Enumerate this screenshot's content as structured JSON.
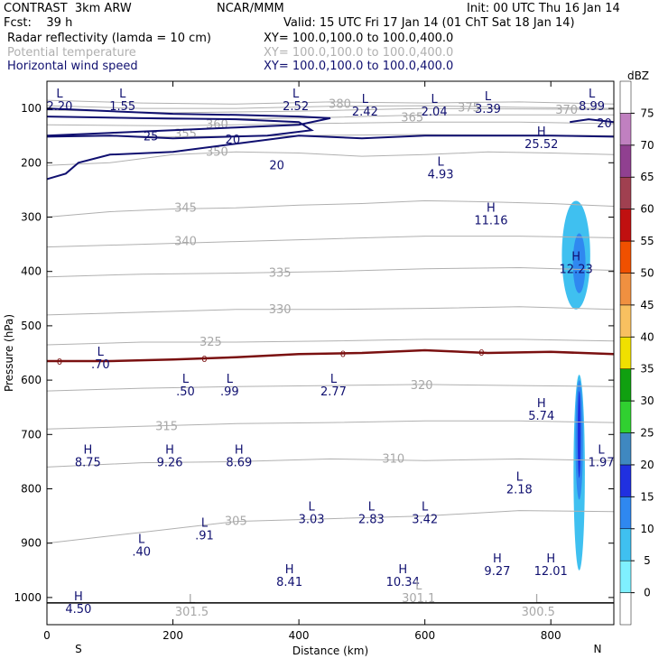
{
  "header": {
    "line1_left": "CONTRAST  3km ARW",
    "line1_center": "NCAR/MMM",
    "line1_right": "Init: 00 UTC Thu 16 Jan 14",
    "line2_left": "Fcst:    39 h",
    "line2_right": "Valid: 15 UTC Fri 17 Jan 14 (01 ChT Sat 18 Jan 14)",
    "field1_name": "Radar reflectivity (lamda = 10 cm)",
    "field1_xy": "XY= 100.0,100.0 to 100.0,400.0",
    "field2_name": "Potential temperature",
    "field2_xy": "XY= 100.0,100.0 to 100.0,400.0",
    "field3_name": "Horizontal wind speed",
    "field3_xy": "XY= 100.0,100.0 to 100.0,400.0"
  },
  "colors": {
    "wind": "#101070",
    "theta": "#b0b0b0",
    "freezing": "#7a1010",
    "frame": "#000000"
  },
  "chart_data": {
    "type": "contour-cross-section",
    "xlabel": "Distance (km)",
    "ylabel": "Pressure (hPa)",
    "xlim": [
      0,
      900
    ],
    "ylim": [
      1050,
      50
    ],
    "xticks": [
      0,
      200,
      400,
      600,
      800
    ],
    "yticks": [
      100,
      200,
      300,
      400,
      500,
      600,
      700,
      800,
      900,
      1000
    ],
    "x_end_labels": {
      "left": "S",
      "right": "N"
    },
    "colorbar": {
      "unit": "dBZ",
      "levels": [
        0,
        5,
        10,
        15,
        20,
        25,
        30,
        35,
        40,
        45,
        50,
        55,
        60,
        65,
        70,
        75
      ],
      "colors": [
        "#ffffff",
        "#7ff0ff",
        "#3fc0f0",
        "#2f88f0",
        "#2030e0",
        "#3f88c0",
        "#30d030",
        "#10a010",
        "#f0e000",
        "#f8c060",
        "#f09040",
        "#f05000",
        "#c01010",
        "#a04050",
        "#904090",
        "#c080c0",
        "#ffffff"
      ]
    },
    "theta_contours": [
      {
        "label": "380",
        "points": [
          [
            0,
            85
          ],
          [
            150,
            90
          ],
          [
            300,
            92
          ],
          [
            450,
            88
          ],
          [
            600,
            90
          ],
          [
            750,
            88
          ],
          [
            900,
            92
          ]
        ],
        "label_pos": [
          465,
          92
        ]
      },
      {
        "label": "375",
        "points": [
          [
            0,
            95
          ],
          [
            150,
            100
          ],
          [
            300,
            100
          ],
          [
            450,
            96
          ],
          [
            600,
            95
          ],
          [
            750,
            98
          ],
          [
            900,
            100
          ]
        ],
        "label_pos": [
          670,
          99
        ]
      },
      {
        "label": "370",
        "points": [
          [
            0,
            103
          ],
          [
            200,
            108
          ],
          [
            400,
            105
          ],
          [
            600,
            100
          ],
          [
            900,
            102
          ]
        ],
        "label_pos": [
          825,
          103
        ]
      },
      {
        "label": "365",
        "points": [
          [
            0,
            115
          ],
          [
            200,
            120
          ],
          [
            400,
            118
          ],
          [
            600,
            112
          ],
          [
            900,
            112
          ]
        ],
        "label_pos": [
          580,
          117
        ]
      },
      {
        "label": "360",
        "points": [
          [
            0,
            130
          ],
          [
            200,
            132
          ],
          [
            400,
            128
          ],
          [
            600,
            125
          ],
          [
            750,
            125
          ],
          [
            900,
            128
          ]
        ],
        "label_pos": [
          270,
          130
        ]
      },
      {
        "label": "355",
        "points": [
          [
            0,
            150
          ],
          [
            200,
            152
          ],
          [
            400,
            150
          ],
          [
            600,
            148
          ],
          [
            900,
            150
          ]
        ],
        "label_pos": [
          220,
          147
        ]
      },
      {
        "label": "350",
        "points": [
          [
            0,
            205
          ],
          [
            100,
            200
          ],
          [
            200,
            185
          ],
          [
            300,
            180
          ],
          [
            400,
            182
          ],
          [
            500,
            188
          ],
          [
            600,
            185
          ],
          [
            700,
            180
          ],
          [
            800,
            182
          ],
          [
            900,
            185
          ]
        ],
        "label_pos": [
          270,
          180
        ]
      },
      {
        "label": "345",
        "points": [
          [
            0,
            300
          ],
          [
            100,
            290
          ],
          [
            200,
            285
          ],
          [
            300,
            283
          ],
          [
            400,
            278
          ],
          [
            500,
            275
          ],
          [
            600,
            270
          ],
          [
            700,
            272
          ],
          [
            800,
            275
          ],
          [
            900,
            280
          ]
        ],
        "label_pos": [
          220,
          283
        ]
      },
      {
        "label": "340",
        "points": [
          [
            0,
            355
          ],
          [
            150,
            350
          ],
          [
            300,
            345
          ],
          [
            450,
            340
          ],
          [
            600,
            335
          ],
          [
            750,
            335
          ],
          [
            900,
            338
          ]
        ],
        "label_pos": [
          220,
          345
        ]
      },
      {
        "label": "335",
        "points": [
          [
            0,
            410
          ],
          [
            150,
            405
          ],
          [
            300,
            403
          ],
          [
            450,
            400
          ],
          [
            600,
            395
          ],
          [
            750,
            393
          ],
          [
            900,
            398
          ]
        ],
        "label_pos": [
          370,
          403
        ]
      },
      {
        "label": "330",
        "points": [
          [
            0,
            480
          ],
          [
            150,
            475
          ],
          [
            300,
            470
          ],
          [
            450,
            470
          ],
          [
            600,
            468
          ],
          [
            750,
            465
          ],
          [
            900,
            470
          ]
        ],
        "label_pos": [
          370,
          470
        ]
      },
      {
        "label": "325",
        "points": [
          [
            0,
            535
          ],
          [
            150,
            530
          ],
          [
            300,
            530
          ],
          [
            450,
            528
          ],
          [
            600,
            525
          ],
          [
            750,
            525
          ],
          [
            900,
            528
          ]
        ],
        "label_pos": [
          260,
          530
        ]
      },
      {
        "label": "320",
        "points": [
          [
            0,
            620
          ],
          [
            150,
            615
          ],
          [
            300,
            612
          ],
          [
            450,
            610
          ],
          [
            600,
            608
          ],
          [
            750,
            610
          ],
          [
            900,
            612
          ]
        ],
        "label_pos": [
          595,
          610
        ]
      },
      {
        "label": "315",
        "points": [
          [
            0,
            690
          ],
          [
            150,
            685
          ],
          [
            300,
            680
          ],
          [
            450,
            678
          ],
          [
            600,
            675
          ],
          [
            750,
            675
          ],
          [
            900,
            678
          ]
        ],
        "label_pos": [
          190,
          685
        ]
      },
      {
        "label": "310",
        "points": [
          [
            0,
            760
          ],
          [
            150,
            752
          ],
          [
            300,
            750
          ],
          [
            450,
            745
          ],
          [
            600,
            748
          ],
          [
            750,
            745
          ],
          [
            900,
            748
          ]
        ],
        "label_pos": [
          550,
          745
        ]
      },
      {
        "label": "305",
        "points": [
          [
            0,
            900
          ],
          [
            150,
            880
          ],
          [
            300,
            860
          ],
          [
            450,
            855
          ],
          [
            600,
            850
          ],
          [
            750,
            840
          ],
          [
            900,
            842
          ]
        ],
        "label_pos": [
          300,
          860
        ]
      }
    ],
    "wind_contours": [
      {
        "label": "25",
        "points": [
          [
            0,
            100
          ],
          [
            100,
            105
          ],
          [
            200,
            110
          ],
          [
            300,
            112
          ],
          [
            400,
            115
          ],
          [
            450,
            118
          ],
          [
            400,
            130
          ],
          [
            300,
            135
          ],
          [
            200,
            140
          ],
          [
            100,
            145
          ],
          [
            0,
            150
          ]
        ],
        "label_pos": [
          165,
          152
        ]
      },
      {
        "label": "20",
        "points": [
          [
            0,
            230
          ],
          [
            30,
            220
          ],
          [
            50,
            200
          ],
          [
            100,
            185
          ],
          [
            200,
            180
          ],
          [
            300,
            165
          ],
          [
            400,
            150
          ],
          [
            500,
            155
          ],
          [
            600,
            150
          ],
          [
            700,
            150
          ],
          [
            800,
            150
          ],
          [
            900,
            152
          ]
        ],
        "label_pos": [
          295,
          158
        ]
      },
      {
        "label": "20",
        "points": [
          [
            830,
            125
          ],
          [
            860,
            120
          ],
          [
            900,
            125
          ]
        ],
        "label_pos": [
          885,
          128
        ]
      },
      {
        "label": "20",
        "points": [
          [
            0,
            115
          ],
          [
            150,
            118
          ],
          [
            300,
            120
          ],
          [
            400,
            125
          ],
          [
            420,
            140
          ],
          [
            350,
            150
          ],
          [
            200,
            155
          ],
          [
            100,
            150
          ],
          [
            0,
            152
          ]
        ],
        "label_pos": [
          365,
          205
        ]
      }
    ],
    "freezing_level": {
      "label": "0",
      "points": [
        [
          0,
          565
        ],
        [
          100,
          565
        ],
        [
          200,
          562
        ],
        [
          300,
          558
        ],
        [
          400,
          552
        ],
        [
          500,
          550
        ],
        [
          600,
          545
        ],
        [
          700,
          550
        ],
        [
          800,
          548
        ],
        [
          900,
          552
        ]
      ]
    },
    "reflectivity_blobs": [
      {
        "level": 5,
        "x": 840,
        "p_top": 270,
        "p_bottom": 470,
        "width_km": 45
      },
      {
        "level": 10,
        "x": 845,
        "p_top": 330,
        "p_bottom": 440,
        "width_km": 20
      },
      {
        "level": 5,
        "x": 845,
        "p_top": 590,
        "p_bottom": 950,
        "width_km": 18
      },
      {
        "level": 10,
        "x": 845,
        "p_top": 600,
        "p_bottom": 820,
        "width_km": 12
      },
      {
        "level": 15,
        "x": 845,
        "p_top": 620,
        "p_bottom": 780,
        "width_km": 5
      }
    ],
    "hl_labels": [
      {
        "type": "L",
        "value": "2.20",
        "x": 20,
        "p": 80
      },
      {
        "type": "L",
        "value": "1.55",
        "x": 120,
        "p": 80
      },
      {
        "type": "L",
        "value": "2.52",
        "x": 395,
        "p": 80
      },
      {
        "type": "L",
        "value": "2.42",
        "x": 505,
        "p": 90
      },
      {
        "type": "L",
        "value": "2.04",
        "x": 615,
        "p": 90
      },
      {
        "type": "L",
        "value": "3.39",
        "x": 700,
        "p": 85
      },
      {
        "type": "L",
        "value": "8.99",
        "x": 865,
        "p": 80
      },
      {
        "type": "H",
        "value": "25.52",
        "x": 785,
        "p": 150
      },
      {
        "type": "L",
        "value": "4.93",
        "x": 625,
        "p": 205
      },
      {
        "type": "H",
        "value": "11.16",
        "x": 705,
        "p": 290
      },
      {
        "type": "H",
        "value": "12.23",
        "x": 840,
        "p": 380
      },
      {
        "type": "L",
        "value": ".70",
        "x": 85,
        "p": 555
      },
      {
        "type": "L",
        "value": ".50",
        "x": 220,
        "p": 605
      },
      {
        "type": "L",
        "value": ".99",
        "x": 290,
        "p": 605
      },
      {
        "type": "L",
        "value": "2.77",
        "x": 455,
        "p": 605
      },
      {
        "type": "H",
        "value": "5.74",
        "x": 785,
        "p": 650
      },
      {
        "type": "H",
        "value": "8.75",
        "x": 65,
        "p": 735
      },
      {
        "type": "H",
        "value": "9.26",
        "x": 195,
        "p": 735
      },
      {
        "type": "H",
        "value": "8.69",
        "x": 305,
        "p": 735
      },
      {
        "type": "L",
        "value": "1.97",
        "x": 880,
        "p": 735
      },
      {
        "type": "L",
        "value": "2.18",
        "x": 750,
        "p": 785
      },
      {
        "type": "L",
        "value": "3.03",
        "x": 420,
        "p": 840
      },
      {
        "type": "L",
        "value": "2.83",
        "x": 515,
        "p": 840
      },
      {
        "type": "L",
        "value": "3.42",
        "x": 600,
        "p": 840
      },
      {
        "type": "L",
        "value": ".91",
        "x": 250,
        "p": 870
      },
      {
        "type": "L",
        "value": ".40",
        "x": 150,
        "p": 900
      },
      {
        "type": "H",
        "value": "8.41",
        "x": 385,
        "p": 955
      },
      {
        "type": "H",
        "value": "10.34",
        "x": 565,
        "p": 955
      },
      {
        "type": "H",
        "value": "9.27",
        "x": 715,
        "p": 935
      },
      {
        "type": "H",
        "value": "12.01",
        "x": 800,
        "p": 935
      },
      {
        "type": "H",
        "value": "4.50",
        "x": 50,
        "p": 1005
      },
      {
        "type": "L",
        "value": "301.5",
        "x": 230,
        "p": 1010,
        "gray": true
      },
      {
        "type": "L",
        "value": "301.1",
        "x": 590,
        "p": 985,
        "gray": true
      },
      {
        "type": "L",
        "value": "300.5",
        "x": 780,
        "p": 1010,
        "gray": true
      }
    ],
    "ground_line_p": 1010
  }
}
